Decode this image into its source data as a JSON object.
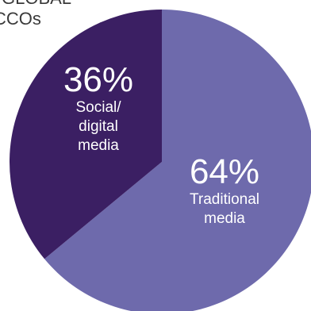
{
  "header": {
    "line1": "GLOBAL",
    "line2": "CCOs"
  },
  "chart_data": {
    "type": "pie",
    "slices": [
      {
        "name": "Social/ digital media",
        "value": 36,
        "label": "36%",
        "caption_lines": [
          "Social/",
          "digital",
          "media"
        ],
        "color": "#3b1f63"
      },
      {
        "name": "Traditional media",
        "value": 64,
        "label": "64%",
        "caption_lines": [
          "Traditional",
          "media"
        ],
        "color": "#6e6aac"
      }
    ]
  }
}
